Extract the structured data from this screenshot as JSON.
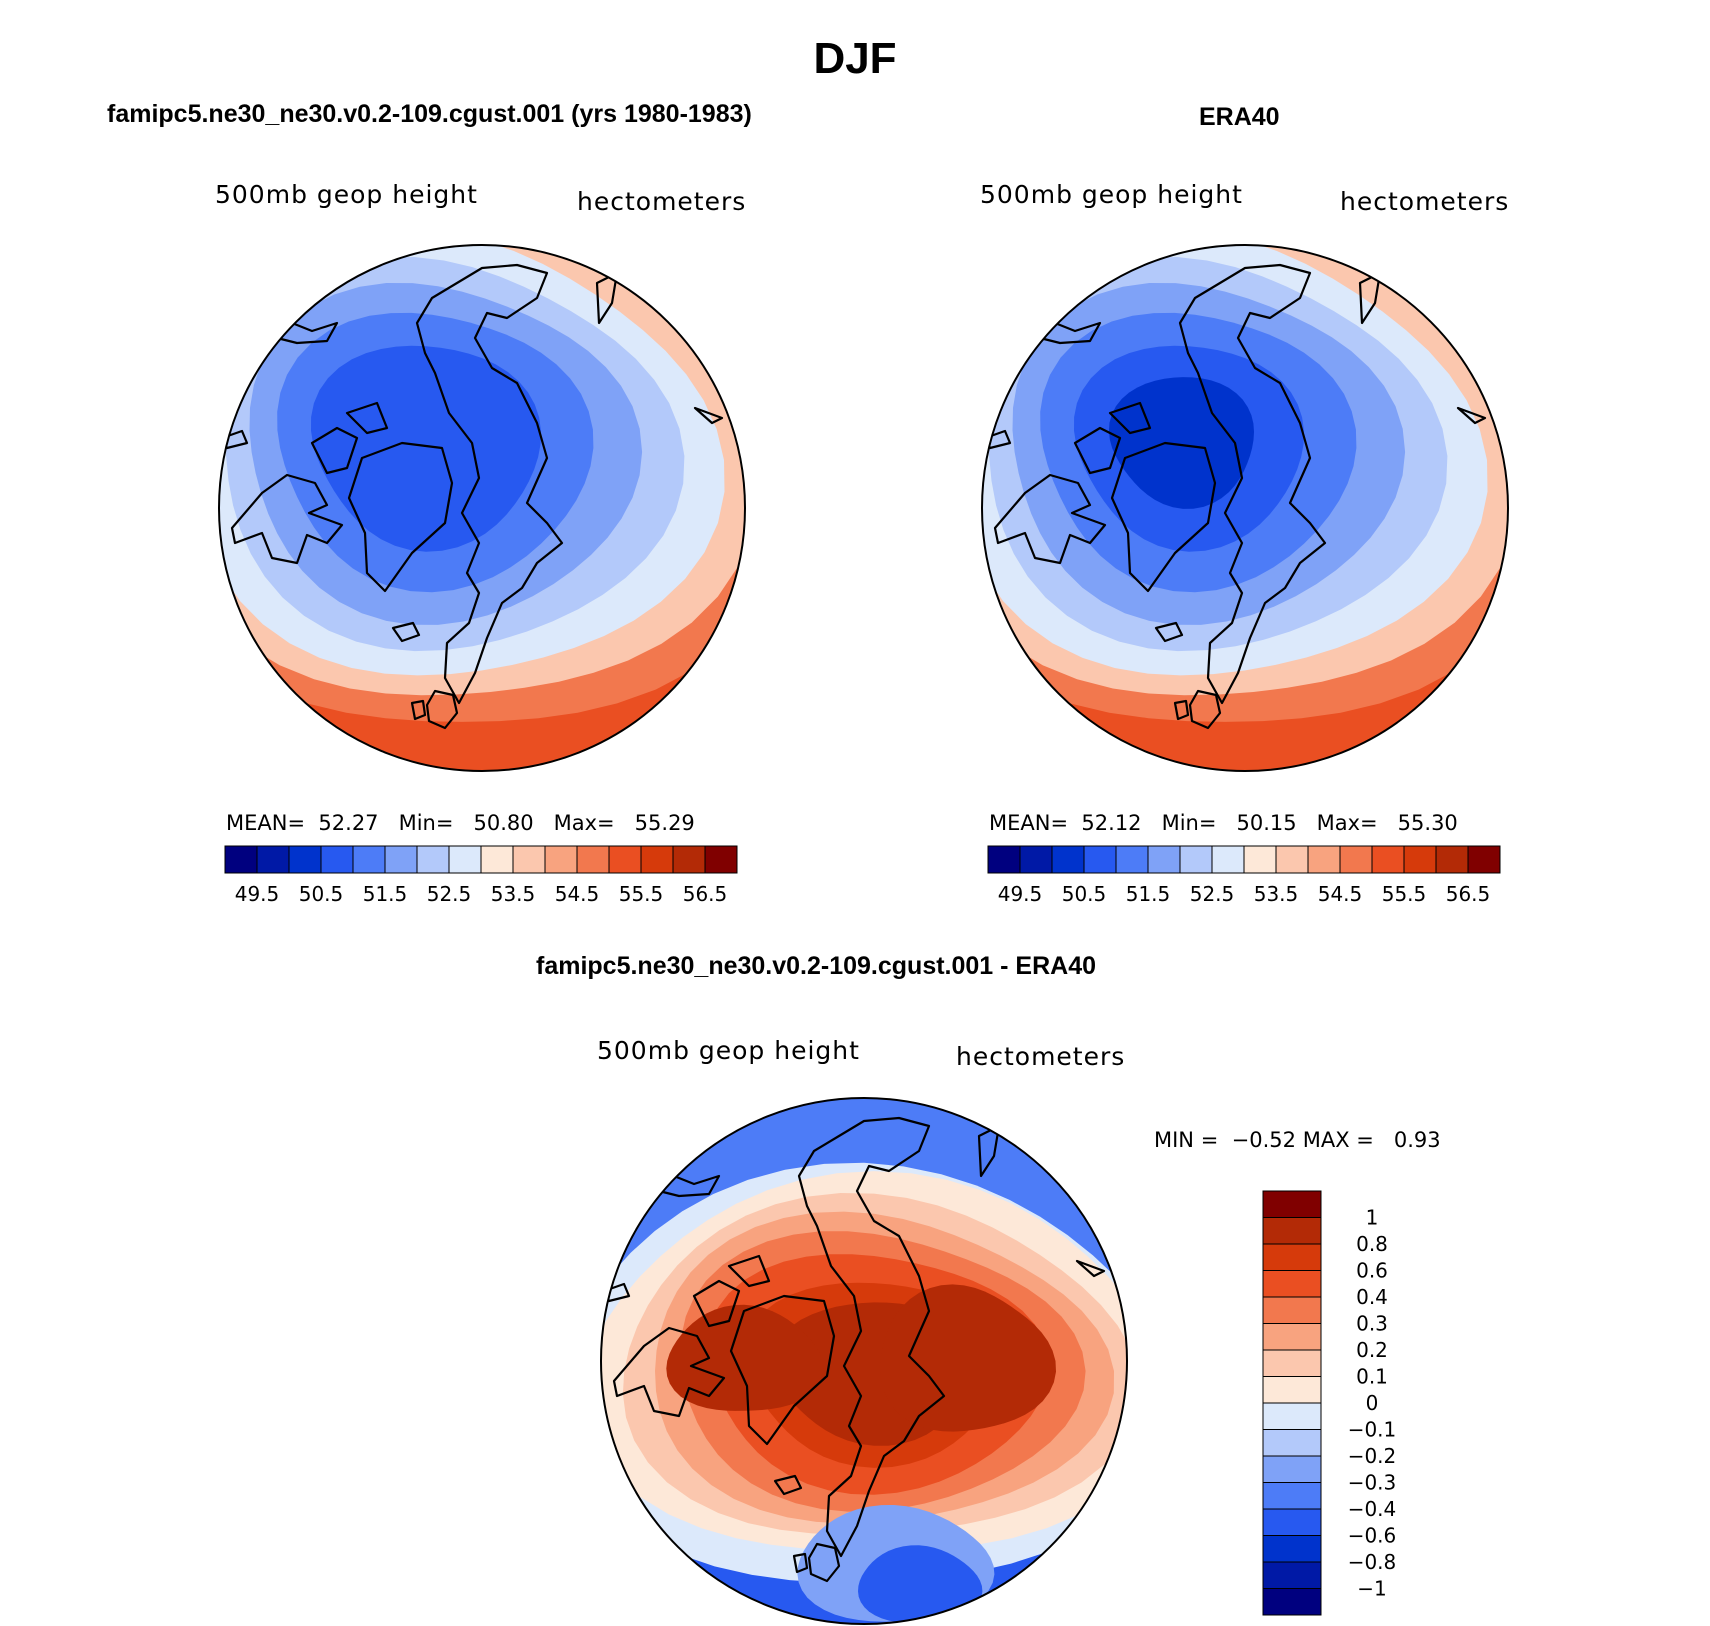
{
  "figure": {
    "title": "DJF"
  },
  "panels": [
    {
      "title": "famipc5.ne30_ne30.v0.2-109.cgust.001 (yrs 1980-1983)",
      "left_label": "500mb geop height",
      "right_label": "hectometers",
      "stats": {
        "mean_label": "MEAN=",
        "mean": "52.27",
        "min_label": "Min=",
        "min": "50.80",
        "max_label": "Max=",
        "max": "55.29"
      }
    },
    {
      "title": "ERA40",
      "left_label": "500mb geop height",
      "right_label": "hectometers",
      "stats": {
        "mean_label": "MEAN=",
        "mean": "52.12",
        "min_label": "Min=",
        "min": "50.15",
        "max_label": "Max=",
        "max": "55.30"
      }
    },
    {
      "title": "famipc5.ne30_ne30.v0.2-109.cgust.001 - ERA40",
      "left_label": "500mb geop height",
      "right_label": "hectometers",
      "stats": {
        "min_label": "MIN =",
        "min": "−0.52",
        "max_label": "MAX =",
        "max": "0.93"
      }
    }
  ],
  "colorbar_abs": {
    "labels": [
      "49.5",
      "50.5",
      "51.5",
      "52.5",
      "53.5",
      "54.5",
      "55.5",
      "56.5"
    ],
    "colors": [
      "#00007f",
      "#0019a6",
      "#0033cc",
      "#2759f0",
      "#4d7cf7",
      "#7fa2f7",
      "#b3c9fa",
      "#dce9fb",
      "#fde8d8",
      "#fbc7ae",
      "#f8a37f",
      "#f2784e",
      "#ea4f22",
      "#d63a0b",
      "#b32a06",
      "#800000"
    ]
  },
  "colorbar_diff": {
    "labels": [
      "1",
      "0.8",
      "0.6",
      "0.4",
      "0.3",
      "0.2",
      "0.1",
      "0",
      "−0.1",
      "−0.2",
      "−0.3",
      "−0.4",
      "−0.6",
      "−0.8",
      "−1"
    ],
    "colors": [
      "#800000",
      "#b32a06",
      "#d63a0b",
      "#ea4f22",
      "#f2784e",
      "#f8a37f",
      "#fbc7ae",
      "#fde8d8",
      "#dce9fb",
      "#b3c9fa",
      "#7fa2f7",
      "#4d7cf7",
      "#2759f0",
      "#0033cc",
      "#0019a6",
      "#00007f"
    ]
  },
  "map_layers": {
    "panel1": [
      "#f2784e",
      "#fbc7ae",
      "#dce9fb",
      "#b3c9fa",
      "#7fa2f7",
      "#4d7cf7",
      "#2759f0"
    ],
    "panel2": [
      "#f2784e",
      "#fbc7ae",
      "#dce9fb",
      "#b3c9fa",
      "#7fa2f7",
      "#4d7cf7",
      "#2759f0",
      "#0033cc"
    ],
    "panel3": [
      "#fde8d8",
      "#fbc7ae",
      "#f8a37f",
      "#f2784e",
      "#ea4f22",
      "#d63a0b",
      "#b32a06"
    ]
  }
}
